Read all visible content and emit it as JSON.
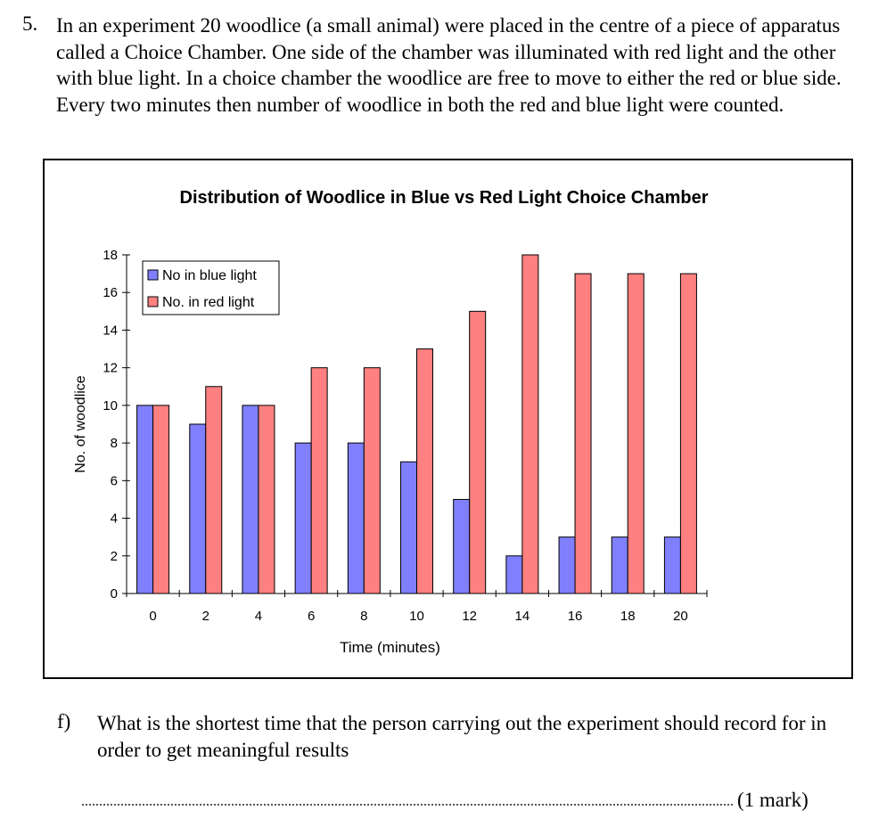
{
  "question": {
    "number": "5.",
    "text": "In an experiment 20 woodlice (a small animal) were placed in the centre of a piece of apparatus called a Choice Chamber.  One side of the chamber was illuminated with red light and the other with blue light.  In a choice chamber the woodlice are free to move to either the red or blue side.  Every two minutes then number of woodlice in both the red and blue light were counted."
  },
  "chart_data": {
    "type": "bar",
    "title": "Distribution of Woodlice in Blue vs Red Light Choice Chamber",
    "xlabel": "Time (minutes)",
    "ylabel": "No. of woodlice",
    "categories": [
      "0",
      "2",
      "4",
      "6",
      "8",
      "10",
      "12",
      "14",
      "16",
      "18",
      "20"
    ],
    "series": [
      {
        "name": "No in blue light",
        "color": "#8080ff",
        "values": [
          10,
          9,
          10,
          8,
          8,
          7,
          5,
          2,
          3,
          3,
          3
        ]
      },
      {
        "name": "No. in red light",
        "color": "#ff8080",
        "values": [
          10,
          11,
          10,
          12,
          12,
          13,
          15,
          18,
          17,
          17,
          17
        ]
      }
    ],
    "ylim": [
      0,
      18
    ],
    "yticks": [
      "0",
      "2",
      "4",
      "6",
      "8",
      "10",
      "12",
      "14",
      "16",
      "18"
    ],
    "grid": false,
    "legend_position": "top-left"
  },
  "subquestion": {
    "label": "f)",
    "text": "What is the shortest time that the person carrying out the experiment should record for in order to get meaningful results"
  },
  "answer": {
    "marks": "(1 mark)"
  }
}
